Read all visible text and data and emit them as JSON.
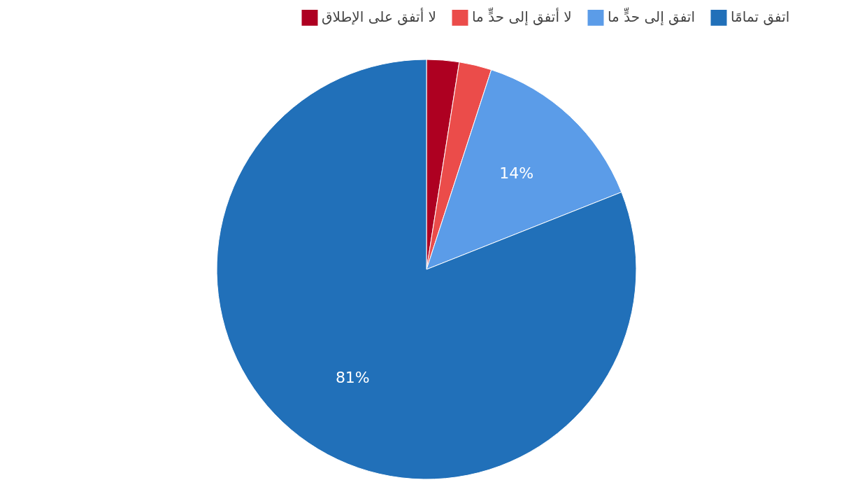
{
  "chart_data": {
    "type": "pie",
    "categories": [
      "لا أتفق على الإطلاق",
      "لا أتفق إلى حدٍّ ما",
      "اتفق إلى حدٍّ ما",
      "اتفق تمامًا"
    ],
    "values": [
      2.5,
      2.5,
      14,
      81
    ],
    "colors": [
      "#ae0021",
      "#eb4c4a",
      "#5b9ce8",
      "#2170b9"
    ],
    "value_labels": [
      null,
      null,
      "14%",
      "81%"
    ],
    "legend": "top"
  }
}
